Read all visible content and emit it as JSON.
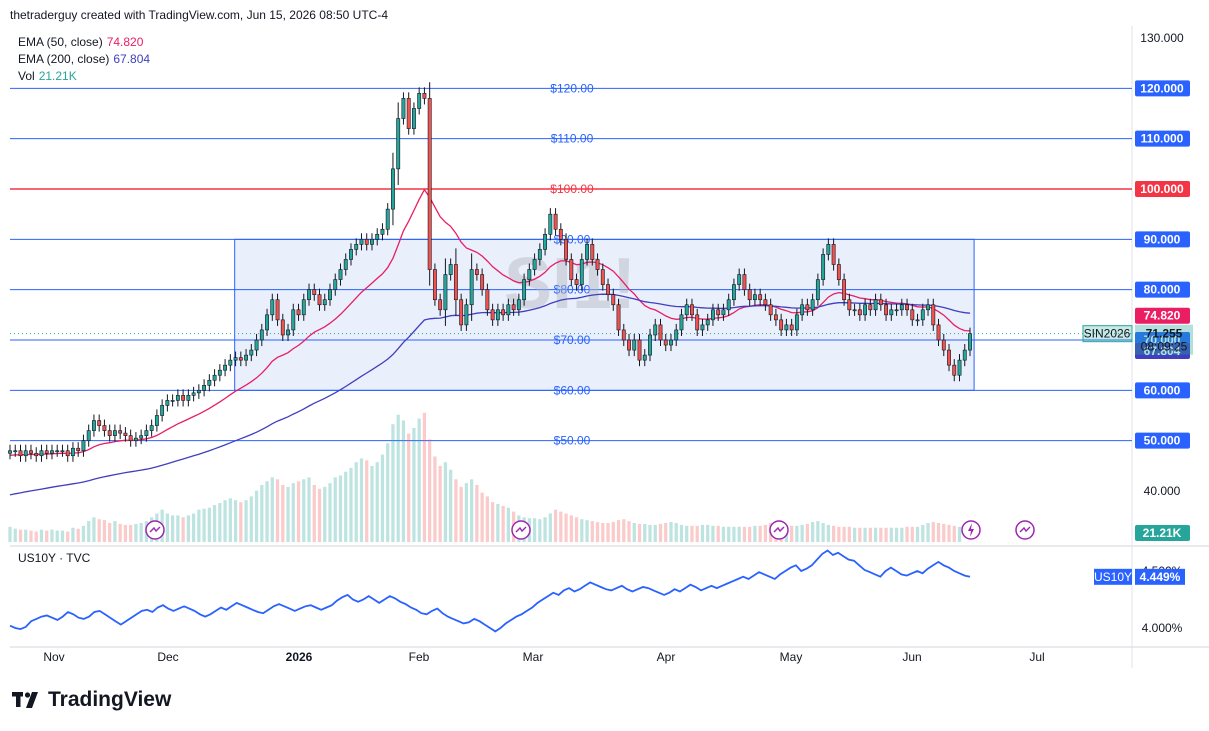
{
  "header": {
    "text": "thetraderguy created with TradingView.com, Jun 15, 2026 08:50 UTC-4"
  },
  "legend": {
    "ema50_label": "EMA (50, close)",
    "ema50_value": "74.820",
    "ema200_label": "EMA (200, close)",
    "ema200_value": "67.804",
    "vol_label": "Vol",
    "vol_value": "21.21K"
  },
  "sub_panel": {
    "label": "US10Y · TVC"
  },
  "footer": {
    "brand": "TradingView"
  },
  "watermark": "SI1!",
  "colors": {
    "up": "#26a69a",
    "down": "#ef5350",
    "ema50": "#e91e63",
    "ema200": "#3f3fbf",
    "level_line": "#2962ff",
    "red_level": "#f23645",
    "us10y_line": "#2962ff",
    "range_box_fill": "#e3e9fb",
    "range_box_stroke": "#2962ff"
  },
  "icons": [
    "lightning-icon",
    "dividend-icon"
  ],
  "chart_data": [
    {
      "type": "candlestick",
      "symbol": "SIN2026",
      "last_price": "71.255",
      "countdown": "08:09:25",
      "x_labels": [
        "Nov",
        "Dec",
        "2026",
        "Feb",
        "Mar",
        "Apr",
        "May",
        "Jun",
        "Jul"
      ],
      "y_ticks": [
        "130.000",
        "40.000"
      ],
      "ylim": [
        36,
        130
      ],
      "horizontal_levels": [
        {
          "price": 120,
          "label": "$120.00",
          "badge": "120.000"
        },
        {
          "price": 110,
          "label": "$110.00",
          "badge": "110.000"
        },
        {
          "price": 100,
          "label": "$100.00",
          "badge": "100.000"
        },
        {
          "price": 90,
          "label": "$90.00",
          "badge": "90.000"
        },
        {
          "price": 80,
          "label": "$80.00",
          "badge": "80.000"
        },
        {
          "price": 70,
          "label": "$70.00",
          "badge": "70.000"
        },
        {
          "price": 60,
          "label": "$60.00",
          "badge": "60.000"
        },
        {
          "price": 50,
          "label": "$50.00",
          "badge": "50.000"
        }
      ],
      "range_box": {
        "start": "2025-12-17",
        "end": "2026-06-16",
        "top": 90,
        "bottom": 60
      },
      "price_badges": {
        "ema50": "74.820",
        "ema200": "67.804",
        "volume": "21.21K"
      },
      "start_date": "2025-10-23",
      "end_date": "2026-06-15",
      "closes": [
        48,
        48,
        47,
        48,
        47.5,
        47,
        48,
        47.5,
        48,
        48,
        48,
        47,
        48.5,
        48,
        50,
        52,
        54,
        53,
        52,
        51,
        52,
        51.5,
        51,
        50,
        50.5,
        51,
        52,
        53,
        55,
        57,
        58,
        58,
        59,
        58,
        59,
        59.5,
        60,
        61,
        62,
        63,
        64,
        65,
        66,
        66.5,
        66,
        67,
        68,
        70,
        72,
        75,
        78,
        74,
        71,
        72,
        76,
        75,
        78,
        80,
        79,
        77,
        78,
        80,
        82,
        84,
        86,
        88,
        89,
        90,
        89,
        90,
        91,
        92,
        96,
        104,
        114,
        118,
        112,
        116,
        119,
        118,
        84,
        78,
        76,
        83,
        85,
        78,
        73,
        77,
        84,
        83,
        80,
        76,
        74,
        76,
        75,
        77,
        76,
        78,
        82,
        84,
        86,
        88,
        91,
        95,
        92,
        90,
        86,
        82,
        81,
        86,
        89,
        86,
        84,
        81,
        79,
        77,
        72,
        70,
        68,
        70,
        66,
        67,
        71,
        73,
        70,
        69,
        70,
        72,
        75,
        77,
        75,
        72,
        73,
        74,
        76,
        75,
        76,
        78,
        81,
        83,
        80,
        78,
        79,
        78,
        77,
        75,
        74,
        72,
        73,
        72,
        75,
        77,
        76,
        78,
        82,
        87,
        89,
        85,
        82,
        78,
        76,
        76,
        75,
        77,
        76,
        78,
        77,
        75,
        76,
        76,
        77,
        76,
        74,
        74,
        76,
        77,
        73,
        70,
        68,
        65,
        63,
        66,
        68,
        71.255
      ],
      "volumes": [
        1.6,
        1.4,
        1.3,
        1.3,
        1.2,
        1.1,
        1.3,
        1.2,
        1.3,
        1.2,
        1.2,
        1.1,
        1.5,
        1.4,
        1.7,
        2.2,
        2.6,
        2.4,
        2.3,
        2.0,
        2.2,
        1.9,
        1.8,
        1.8,
        1.9,
        2.0,
        2.2,
        2.6,
        3.0,
        3.4,
        3.0,
        2.8,
        2.8,
        2.6,
        2.8,
        3.0,
        3.4,
        3.5,
        3.6,
        3.9,
        4.1,
        4.4,
        4.6,
        4.4,
        4.2,
        4.4,
        4.8,
        5.4,
        6.0,
        6.4,
        6.8,
        6.6,
        6.0,
        5.8,
        6.2,
        6.4,
        6.6,
        6.8,
        6.0,
        5.6,
        5.8,
        6.2,
        6.8,
        7.0,
        7.4,
        7.8,
        8.4,
        8.8,
        8.6,
        8.0,
        8.4,
        9.2,
        10.4,
        12.4,
        13.4,
        12.8,
        11.4,
        12.0,
        13.0,
        13.6,
        10.8,
        9.0,
        8.0,
        8.4,
        7.6,
        6.6,
        5.8,
        6.2,
        6.6,
        6.0,
        5.2,
        4.8,
        4.2,
        4.0,
        3.8,
        3.6,
        3.2,
        2.8,
        2.6,
        2.5,
        2.5,
        2.4,
        2.6,
        3.0,
        3.4,
        3.2,
        3.0,
        2.8,
        2.6,
        2.4,
        2.3,
        2.2,
        2.1,
        2.0,
        2.0,
        2.1,
        2.3,
        2.4,
        2.2,
        2.0,
        1.9,
        1.9,
        1.8,
        1.8,
        1.9,
        2.0,
        2.1,
        2.0,
        1.8,
        1.7,
        1.7,
        1.7,
        1.8,
        1.8,
        1.7,
        1.7,
        1.6,
        1.6,
        1.6,
        1.6,
        1.6,
        1.6,
        1.7,
        1.7,
        1.8,
        2.0,
        2.0,
        1.9,
        1.8,
        1.7,
        1.7,
        1.8,
        1.9,
        2.1,
        2.2,
        2.0,
        1.8,
        1.7,
        1.6,
        1.6,
        1.6,
        1.5,
        1.5,
        1.5,
        1.5,
        1.5,
        1.5,
        1.5,
        1.5,
        1.5,
        1.5,
        1.6,
        1.6,
        1.6,
        1.8,
        2.0,
        2.1,
        2.0,
        1.9,
        1.8,
        1.7,
        1.6
      ]
    },
    {
      "type": "line",
      "name": "US10Y",
      "last_value": "4.449%",
      "y_ticks": [
        "4.500%",
        "4.000%"
      ],
      "ylim": [
        3.7,
        4.8
      ],
      "start_date": "2025-10-23",
      "end_date": "2026-06-15",
      "values": [
        4.02,
        4.0,
        3.99,
        4.01,
        4.06,
        4.08,
        4.1,
        4.11,
        4.09,
        4.07,
        4.1,
        4.14,
        4.12,
        4.09,
        4.08,
        4.1,
        4.14,
        4.15,
        4.12,
        4.09,
        4.06,
        4.03,
        4.06,
        4.09,
        4.12,
        4.15,
        4.16,
        4.14,
        4.18,
        4.2,
        4.17,
        4.15,
        4.17,
        4.19,
        4.17,
        4.15,
        4.12,
        4.1,
        4.12,
        4.15,
        4.18,
        4.16,
        4.19,
        4.22,
        4.2,
        4.18,
        4.16,
        4.14,
        4.13,
        4.16,
        4.19,
        4.21,
        4.19,
        4.17,
        4.15,
        4.17,
        4.19,
        4.2,
        4.18,
        4.16,
        4.18,
        4.2,
        4.24,
        4.27,
        4.29,
        4.25,
        4.23,
        4.25,
        4.28,
        4.25,
        4.22,
        4.25,
        4.28,
        4.26,
        4.23,
        4.21,
        4.18,
        4.16,
        4.13,
        4.12,
        4.15,
        4.17,
        4.13,
        4.1,
        4.08,
        4.06,
        4.04,
        4.05,
        4.08,
        4.06,
        4.03,
        4.0,
        3.97,
        4.0,
        4.04,
        4.07,
        4.1,
        4.12,
        4.15,
        4.18,
        4.22,
        4.25,
        4.28,
        4.31,
        4.29,
        4.33,
        4.35,
        4.32,
        4.34,
        4.37,
        4.4,
        4.38,
        4.36,
        4.34,
        4.33,
        4.35,
        4.37,
        4.34,
        4.32,
        4.34,
        4.36,
        4.35,
        4.33,
        4.31,
        4.29,
        4.31,
        4.34,
        4.32,
        4.35,
        4.38,
        4.36,
        4.33,
        4.35,
        4.37,
        4.35,
        4.37,
        4.39,
        4.41,
        4.43,
        4.45,
        4.43,
        4.46,
        4.49,
        4.47,
        4.45,
        4.43,
        4.47,
        4.5,
        4.53,
        4.55,
        4.5,
        4.52,
        4.55,
        4.6,
        4.65,
        4.68,
        4.64,
        4.66,
        4.63,
        4.6,
        4.59,
        4.55,
        4.51,
        4.49,
        4.47,
        4.45,
        4.5,
        4.53,
        4.5,
        4.47,
        4.46,
        4.48,
        4.5,
        4.48,
        4.52,
        4.55,
        4.58,
        4.55,
        4.53,
        4.5,
        4.48,
        4.46,
        4.449
      ]
    }
  ]
}
